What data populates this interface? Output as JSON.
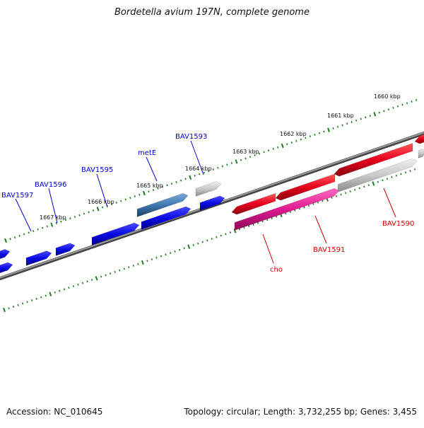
{
  "title": "Bordetella avium 197N, complete genome",
  "footer": {
    "accession": "Accession: NC_010645",
    "summary": "Topology: circular; Length: 3,732,255 bp; Genes: 3,455"
  },
  "colors": {
    "backbone": "#7a7a7a",
    "tick": "#1f7a1f",
    "blue_gene": "#0a0ae6",
    "steelblue_gene": "#3f78b0",
    "grey_gene": "#bdbdbd",
    "red_gene": "#e8001c",
    "pink_gene": "#e01890",
    "blue_label": "#0000cc",
    "red_label": "#cc0000"
  },
  "ticks": [
    "1660 kbp",
    "1661 kbp",
    "1662 kbp",
    "1663 kbp",
    "1664 kbp",
    "1665 kbp",
    "1666 kbp",
    "1667 kbp"
  ],
  "genes": [
    {
      "label": "BAV1597",
      "strand": "reverse",
      "color": "blue"
    },
    {
      "label": "BAV1596",
      "strand": "reverse",
      "color": "blue"
    },
    {
      "label": "BAV1595",
      "strand": "reverse",
      "color": "blue"
    },
    {
      "label": "metE",
      "strand": "reverse",
      "color": "steelblue"
    },
    {
      "label": "BAV1593",
      "strand": "reverse",
      "color": "blue"
    },
    {
      "label": "cho",
      "strand": "forward",
      "color": "pink"
    },
    {
      "label": "BAV1591",
      "strand": "forward",
      "color": "red"
    },
    {
      "label": "BAV1590",
      "strand": "forward",
      "color": "red"
    }
  ]
}
